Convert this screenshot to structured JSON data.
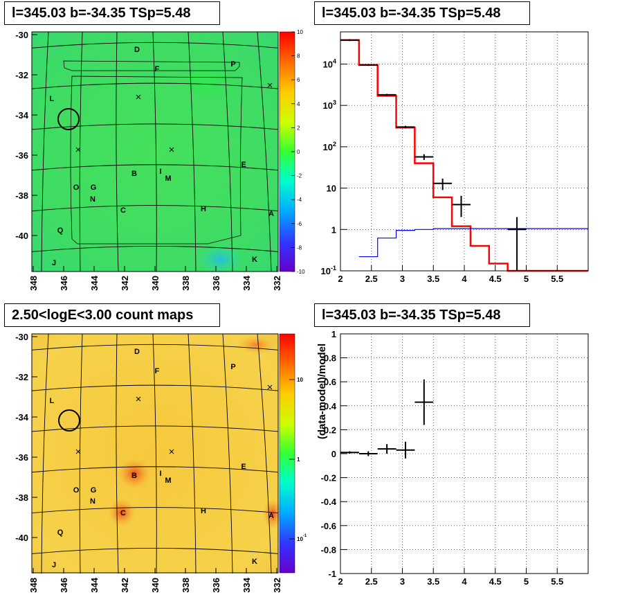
{
  "panels": {
    "tl_title": "l=345.03 b=-34.35 TSp=5.48",
    "tr_title": "l=345.03 b=-34.35 TSp=5.48",
    "bl_title": "2.50<logE<3.00 count maps",
    "br_title": "l=345.03 b=-34.35 TSp=5.48"
  },
  "maps": {
    "lon_ticks": [
      "348",
      "346",
      "344",
      "342",
      "340",
      "338",
      "336",
      "334",
      "332"
    ],
    "lat_ticks": [
      "-30",
      "-32",
      "-34",
      "-36",
      "-38",
      "-40"
    ],
    "source_labels": [
      "D",
      "F",
      "P",
      "L",
      "E",
      "I",
      "B",
      "M",
      "O",
      "G",
      "N",
      "C",
      "H",
      "A",
      "Q",
      "J",
      "K"
    ],
    "tl_colorbar_ticks": [
      "10",
      "8",
      "6",
      "4",
      "2",
      "0",
      "-2",
      "-4",
      "-6",
      "-8",
      "-10"
    ],
    "bl_colorbar_ticks": [
      "10",
      "1",
      "10^-1"
    ]
  },
  "colors": {
    "model_total": "#ff0000",
    "model_background": "#0000ff",
    "data": "#000000"
  },
  "chart_data": [
    {
      "type": "line",
      "panel": "spectrum",
      "title": "l=345.03 b=-34.35 TSp=5.48",
      "xlim": [
        2,
        6
      ],
      "ylim": [
        0.1,
        60000
      ],
      "yscale": "log",
      "x_ticks": [
        "2",
        "2.5",
        "3",
        "3.5",
        "4",
        "4.5",
        "5",
        "5.5"
      ],
      "y_ticks": [
        "10^-1",
        "1",
        "10",
        "10^2",
        "10^3",
        "10^4"
      ],
      "grid": true,
      "series": [
        {
          "kind": "step",
          "color": "#ff0000",
          "edges": [
            2.0,
            2.3,
            2.6,
            2.9,
            3.2,
            3.5,
            3.8,
            4.1,
            4.4,
            4.7,
            5.0,
            6.0
          ],
          "values": [
            38000,
            9500,
            1700,
            290,
            40,
            6,
            1.2,
            0.4,
            0.15,
            0.1,
            0.1
          ]
        },
        {
          "kind": "step",
          "color": "#0000ff",
          "edges": [
            2.3,
            2.6,
            2.9,
            3.2,
            3.5,
            6.0
          ],
          "values": [
            0.22,
            0.62,
            0.95,
            1.0,
            1.05
          ]
        },
        {
          "kind": "errorbar",
          "color": "#000000",
          "points": [
            {
              "x": 2.15,
              "y": 38000,
              "xerr": 0.15,
              "ylo": 36000,
              "yhi": 40000
            },
            {
              "x": 2.45,
              "y": 9500,
              "xerr": 0.15,
              "ylo": 9000,
              "yhi": 10000
            },
            {
              "x": 2.75,
              "y": 1800,
              "xerr": 0.15,
              "ylo": 1700,
              "yhi": 1900
            },
            {
              "x": 3.05,
              "y": 300,
              "xerr": 0.15,
              "ylo": 280,
              "yhi": 320
            },
            {
              "x": 3.35,
              "y": 57,
              "xerr": 0.15,
              "ylo": 48,
              "yhi": 66
            },
            {
              "x": 3.65,
              "y": 13,
              "xerr": 0.15,
              "ylo": 9,
              "yhi": 17
            },
            {
              "x": 3.95,
              "y": 4,
              "xerr": 0.15,
              "ylo": 2,
              "yhi": 6.5
            },
            {
              "x": 4.85,
              "y": 1,
              "xerr": 0.15,
              "ylo": 0.1,
              "yhi": 2
            }
          ]
        }
      ]
    },
    {
      "type": "scatter",
      "panel": "residuals",
      "title": "l=345.03 b=-34.35 TSp=5.48",
      "ylabel": "(data-model)/model",
      "xlim": [
        2,
        6
      ],
      "ylim": [
        -1,
        1
      ],
      "x_ticks": [
        "2",
        "2.5",
        "3",
        "3.5",
        "4",
        "4.5",
        "5",
        "5.5"
      ],
      "y_ticks": [
        "-1",
        "-0.8",
        "-0.6",
        "-0.4",
        "-0.2",
        "0",
        "0.2",
        "0.4",
        "0.6",
        "0.8",
        "1"
      ],
      "grid": true,
      "series": [
        {
          "kind": "errorbar",
          "color": "#000000",
          "points": [
            {
              "x": 2.15,
              "y": 0.01,
              "xerr": 0.15,
              "yerr": 0.01
            },
            {
              "x": 2.45,
              "y": 0.0,
              "xerr": 0.15,
              "yerr": 0.02
            },
            {
              "x": 2.75,
              "y": 0.04,
              "xerr": 0.15,
              "yerr": 0.04
            },
            {
              "x": 3.05,
              "y": 0.03,
              "xerr": 0.15,
              "yerr": 0.07
            },
            {
              "x": 3.35,
              "y": 0.43,
              "xerr": 0.15,
              "yerr": 0.19
            }
          ]
        }
      ]
    }
  ]
}
